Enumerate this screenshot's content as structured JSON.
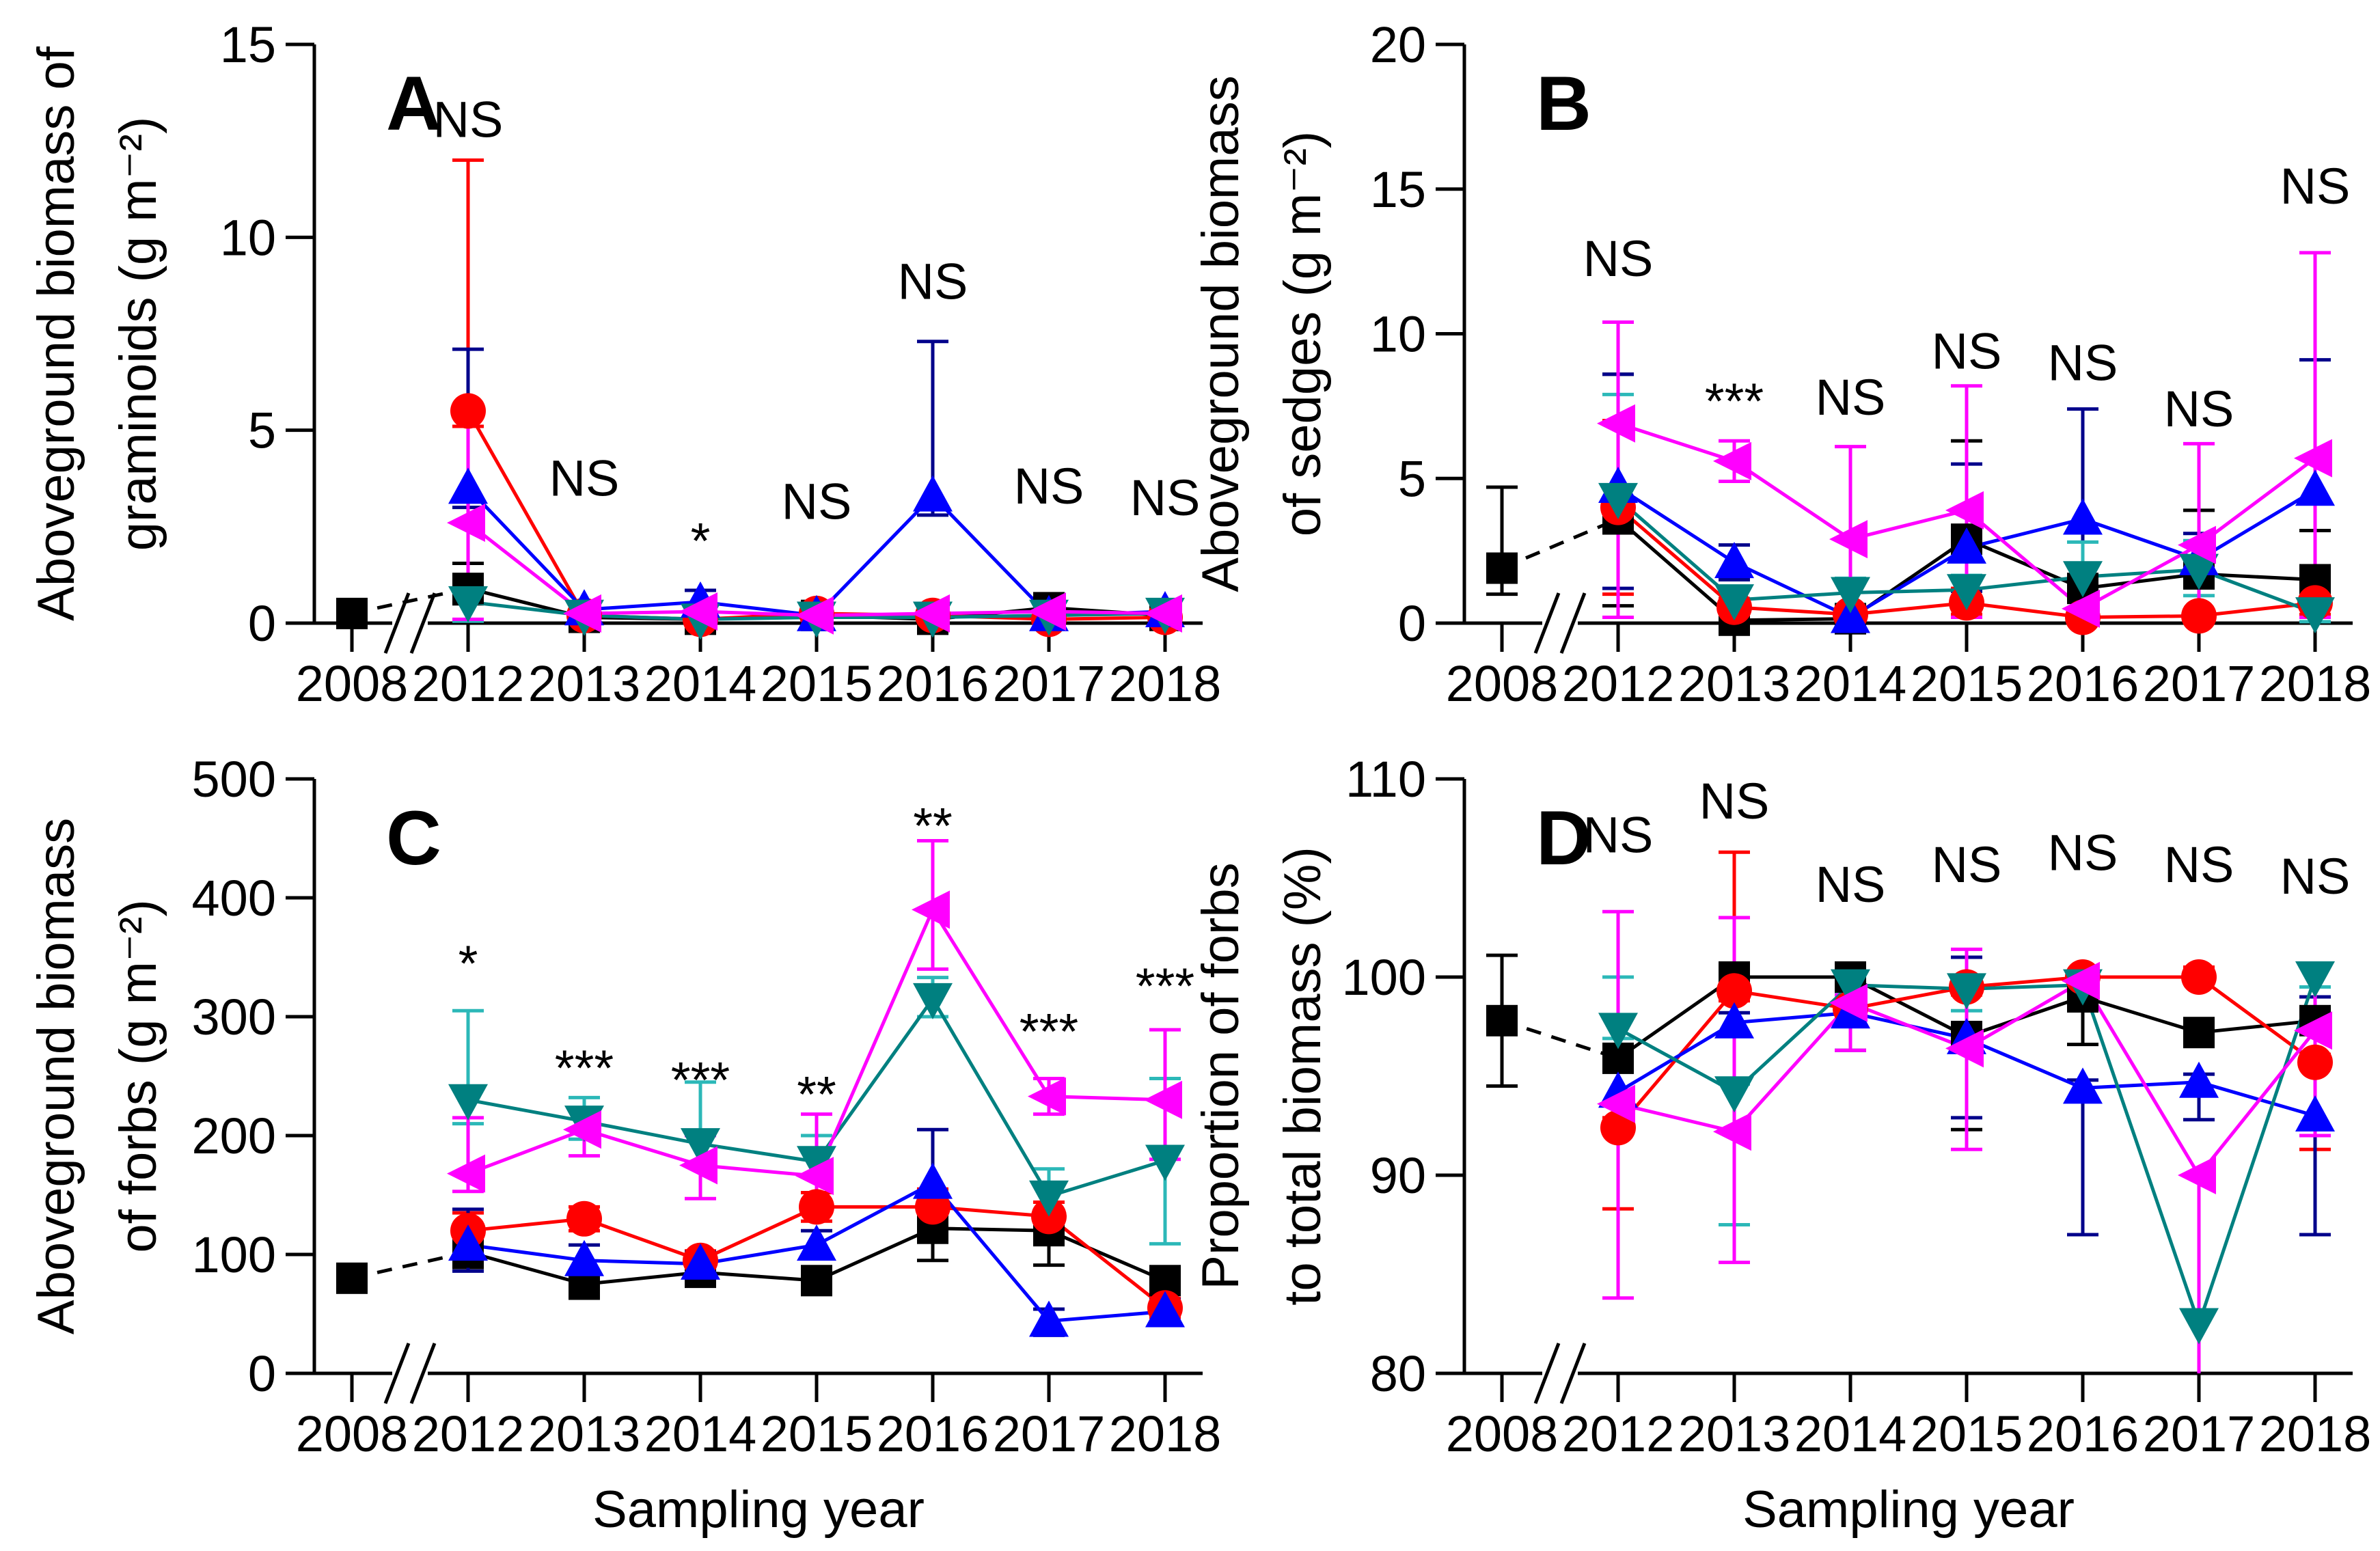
{
  "chart_data": {
    "type": "line",
    "xlabel": "Sampling year",
    "categories": [
      "2008",
      "2012",
      "2013",
      "2014",
      "2015",
      "2016",
      "2017",
      "2018"
    ],
    "x_axis_break_between": [
      "2008",
      "2012"
    ],
    "legend": "none",
    "grid": "off",
    "series_meta": [
      {
        "id": "black-square",
        "marker": "square",
        "color": "#000000",
        "err_color": "#000000"
      },
      {
        "id": "red-circle",
        "marker": "circle",
        "color": "#FF0000",
        "err_color": "#FF0000"
      },
      {
        "id": "blue-triangle-up",
        "marker": "triangle-up",
        "color": "#0000FF",
        "err_color": "#00008B"
      },
      {
        "id": "teal-triangle-down",
        "marker": "triangle-down",
        "color": "#008080",
        "err_color": "#2CB8B8"
      },
      {
        "id": "magenta-triangle-left",
        "marker": "triangle-left",
        "color": "#FF00FF",
        "err_color": "#FF00FF"
      }
    ],
    "panels": [
      {
        "id": "A",
        "letter": "A",
        "ylabel_lines": [
          "Aboveground biomass of",
          "graminoids (g m⁻²)"
        ],
        "ylim": [
          0,
          15
        ],
        "yticks": [
          0,
          5,
          10,
          15
        ],
        "significance": [
          "",
          "NS",
          "NS",
          "*",
          "NS",
          "NS",
          "NS",
          "NS"
        ],
        "significance_y": [
          null,
          12.6,
          3.3,
          2.6,
          2.7,
          8.4,
          3.1,
          2.8
        ],
        "series": {
          "black-square": {
            "values": [
              0.25,
              0.9,
              0.15,
              0.1,
              0.2,
              0.1,
              0.4,
              0.2
            ],
            "err_up": [
              0,
              0.65,
              0,
              0,
              0,
              0,
              0,
              0
            ],
            "err_down": [
              0,
              0.4,
              0,
              0,
              0,
              0,
              0,
              0
            ]
          },
          "red-circle": {
            "values": [
              null,
              5.5,
              0.2,
              0.1,
              0.25,
              0.2,
              0.1,
              0.15
            ],
            "err_up": [
              null,
              6.5,
              0,
              0,
              0,
              0,
              0,
              0
            ],
            "err_down": [
              null,
              0.4,
              0,
              0,
              0,
              0,
              0,
              0
            ]
          },
          "blue-triangle-up": {
            "values": [
              null,
              3.5,
              0.35,
              0.55,
              0.2,
              3.3,
              0.2,
              0.3
            ],
            "err_up": [
              null,
              3.6,
              0.1,
              0.3,
              0,
              4.0,
              0,
              0.2
            ],
            "err_down": [
              null,
              0.5,
              0,
              0.2,
              0,
              0.5,
              0,
              0
            ]
          },
          "teal-triangle-down": {
            "values": [
              null,
              0.55,
              0.2,
              0.1,
              0.15,
              0.15,
              0.2,
              0.25
            ],
            "err_up": [
              null,
              0.3,
              0,
              0,
              0,
              0,
              0,
              0
            ],
            "err_down": [
              null,
              0.5,
              0,
              0,
              0,
              0,
              0,
              0
            ]
          },
          "magenta-triangle-left": {
            "values": [
              null,
              2.6,
              0.25,
              0.3,
              0.2,
              0.25,
              0.3,
              0.25
            ],
            "err_up": [
              null,
              2.8,
              0.1,
              0.2,
              0,
              0.1,
              0,
              0.1
            ],
            "err_down": [
              null,
              2.5,
              0,
              0,
              0,
              0,
              0,
              0
            ]
          }
        }
      },
      {
        "id": "B",
        "letter": "B",
        "ylabel_lines": [
          "Aboveground biomass",
          "of sedges (g m⁻²)"
        ],
        "ylim": [
          0,
          20
        ],
        "yticks": [
          0,
          5,
          10,
          15,
          20
        ],
        "significance": [
          "",
          "NS",
          "***",
          "NS",
          "NS",
          "NS",
          "NS",
          "NS"
        ],
        "significance_y": [
          null,
          12.0,
          8.3,
          7.2,
          8.8,
          8.4,
          6.8,
          14.5
        ],
        "series": {
          "black-square": {
            "values": [
              1.9,
              3.6,
              0.1,
              0.15,
              2.9,
              1.2,
              1.7,
              1.5
            ],
            "err_up": [
              2.8,
              5.0,
              0,
              0,
              3.4,
              0.3,
              2.2,
              1.7
            ],
            "err_down": [
              0.9,
              3.0,
              0,
              0,
              2.6,
              0.3,
              0.4,
              0.4
            ]
          },
          "red-circle": {
            "values": [
              null,
              4.0,
              0.55,
              0.3,
              0.7,
              0.2,
              0.25,
              0.7
            ],
            "err_up": [
              null,
              3.0,
              0.3,
              0.2,
              0.5,
              0,
              0,
              0.4
            ],
            "err_down": [
              null,
              3.0,
              0.3,
              0,
              0.4,
              0,
              0,
              0.4
            ]
          },
          "blue-triangle-up": {
            "values": [
              null,
              4.7,
              2.1,
              0.2,
              2.6,
              3.6,
              2.2,
              4.6
            ],
            "err_up": [
              null,
              3.9,
              0.6,
              0.1,
              2.9,
              3.8,
              0.9,
              4.5
            ],
            "err_down": [
              null,
              3.5,
              0.6,
              0,
              1.5,
              3.4,
              0.8,
              4.4
            ]
          },
          "teal-triangle-down": {
            "values": [
              null,
              4.3,
              0.8,
              1.05,
              1.15,
              1.6,
              1.85,
              0.35
            ],
            "err_up": [
              null,
              3.6,
              0.4,
              0.5,
              0.5,
              1.2,
              1.0,
              0.3
            ],
            "err_down": [
              null,
              4.1,
              0.4,
              0.4,
              0.5,
              0.8,
              0.9,
              0.3
            ]
          },
          "magenta-triangle-left": {
            "values": [
              null,
              6.9,
              5.6,
              2.9,
              3.9,
              0.5,
              2.7,
              5.7
            ],
            "err_up": [
              null,
              3.5,
              0.7,
              3.2,
              4.3,
              0.4,
              3.5,
              7.1
            ],
            "err_down": [
              null,
              6.7,
              0.7,
              2.7,
              3.7,
              0.4,
              2.5,
              5.5
            ]
          }
        }
      },
      {
        "id": "C",
        "letter": "C",
        "ylabel_lines": [
          "Aboveground biomass",
          "of forbs (g m⁻²)"
        ],
        "ylim": [
          0,
          500
        ],
        "yticks": [
          0,
          100,
          200,
          300,
          400,
          500
        ],
        "significance": [
          "",
          "*",
          "***",
          "***",
          "**",
          "**",
          "***",
          "***"
        ],
        "significance_y": [
          null,
          360,
          272,
          262,
          250,
          476,
          303,
          341
        ],
        "series": {
          "black-square": {
            "values": [
              80,
              102,
              75,
              85,
              78,
              122,
              120,
              78
            ],
            "err_up": [
              0,
              16,
              8,
              8,
              8,
              28,
              15,
              10
            ],
            "err_down": [
              0,
              13,
              9,
              8,
              8,
              27,
              29,
              10
            ]
          },
          "red-circle": {
            "values": [
              null,
              120,
              130,
              95,
              140,
              140,
              132,
              55
            ],
            "err_up": [
              null,
              15,
              10,
              8,
              12,
              15,
              12,
              8
            ],
            "err_down": [
              null,
              12,
              10,
              8,
              12,
              12,
              12,
              8
            ]
          },
          "blue-triangle-up": {
            "values": [
              null,
              108,
              95,
              92,
              108,
              160,
              44,
              52
            ],
            "err_up": [
              null,
              30,
              13,
              10,
              12,
              45,
              10,
              10
            ],
            "err_down": [
              null,
              22,
              10,
              8,
              10,
              15,
              12,
              10
            ]
          },
          "teal-triangle-down": {
            "values": [
              null,
              230,
              212,
              193,
              178,
              315,
              149,
              179
            ],
            "err_up": [
              null,
              75,
              20,
              52,
              22,
              18,
              23,
              69
            ],
            "err_down": [
              null,
              20,
              15,
              15,
              12,
              15,
              25,
              70
            ]
          },
          "magenta-triangle-left": {
            "values": [
              null,
              168,
              205,
              175,
              166,
              390,
              233,
              230
            ],
            "err_up": [
              null,
              47,
              17,
              25,
              52,
              58,
              15,
              59
            ],
            "err_down": [
              null,
              15,
              22,
              28,
              20,
              50,
              15,
              50
            ]
          }
        }
      },
      {
        "id": "D",
        "letter": "D",
        "ylabel_lines": [
          "Proportion of forbs",
          "to total biomass (%)"
        ],
        "ylim": [
          80,
          110
        ],
        "yticks": [
          80,
          90,
          100,
          110
        ],
        "significance": [
          "",
          "NS",
          "NS",
          "NS",
          "NS",
          "NS",
          "NS",
          "NS"
        ],
        "significance_y": [
          null,
          106.3,
          108,
          103.8,
          104.8,
          105.4,
          104.8,
          104.2
        ],
        "series": {
          "black-square": {
            "values": [
              97.8,
              95.9,
              100,
              100,
              97.0,
              99.0,
              97.2,
              97.8
            ],
            "err_up": [
              3.3,
              0.5,
              0.3,
              0.3,
              0.5,
              0.4,
              0.3,
              0.5
            ],
            "err_down": [
              3.3,
              0.5,
              0.5,
              0.3,
              4.7,
              2.4,
              0.3,
              0.5
            ]
          },
          "red-circle": {
            "values": [
              null,
              92.4,
              99.3,
              98.4,
              99.5,
              100,
              100,
              95.7
            ],
            "err_up": [
              null,
              0.5,
              7.0,
              0.4,
              0.4,
              0.3,
              0.5,
              0.4
            ],
            "err_down": [
              null,
              4.1,
              0.5,
              0.5,
              0.4,
              0.3,
              0.3,
              4.4
            ]
          },
          "blue-triangle-up": {
            "values": [
              null,
              94.2,
              97.7,
              98.2,
              96.9,
              94.4,
              94.7,
              93.0
            ],
            "err_up": [
              null,
              5.8,
              0.5,
              0.4,
              4.1,
              0.4,
              0.4,
              6.0
            ],
            "err_down": [
              null,
              0.5,
              0.5,
              1.9,
              4.0,
              7.4,
              1.9,
              6.0
            ]
          },
          "teal-triangle-down": {
            "values": [
              null,
              97.4,
              94.2,
              99.6,
              99.4,
              99.6,
              82.5,
              100
            ],
            "err_up": [
              null,
              2.6,
              0.4,
              0.4,
              0.4,
              0.4,
              0,
              0.5
            ],
            "err_down": [
              null,
              0.5,
              6.7,
              0.4,
              1.1,
              0.4,
              2.5,
              0.5
            ]
          },
          "magenta-triangle-left": {
            "values": [
              null,
              93.6,
              92.2,
              98.7,
              96.4,
              99.8,
              90.0,
              97.3
            ],
            "err_up": [
              null,
              9.7,
              10.8,
              0.4,
              5.0,
              0.4,
              0,
              3.2
            ],
            "err_down": [
              null,
              9.8,
              6.6,
              2.4,
              5.1,
              0.4,
              10.0,
              5.3
            ]
          }
        }
      }
    ]
  }
}
